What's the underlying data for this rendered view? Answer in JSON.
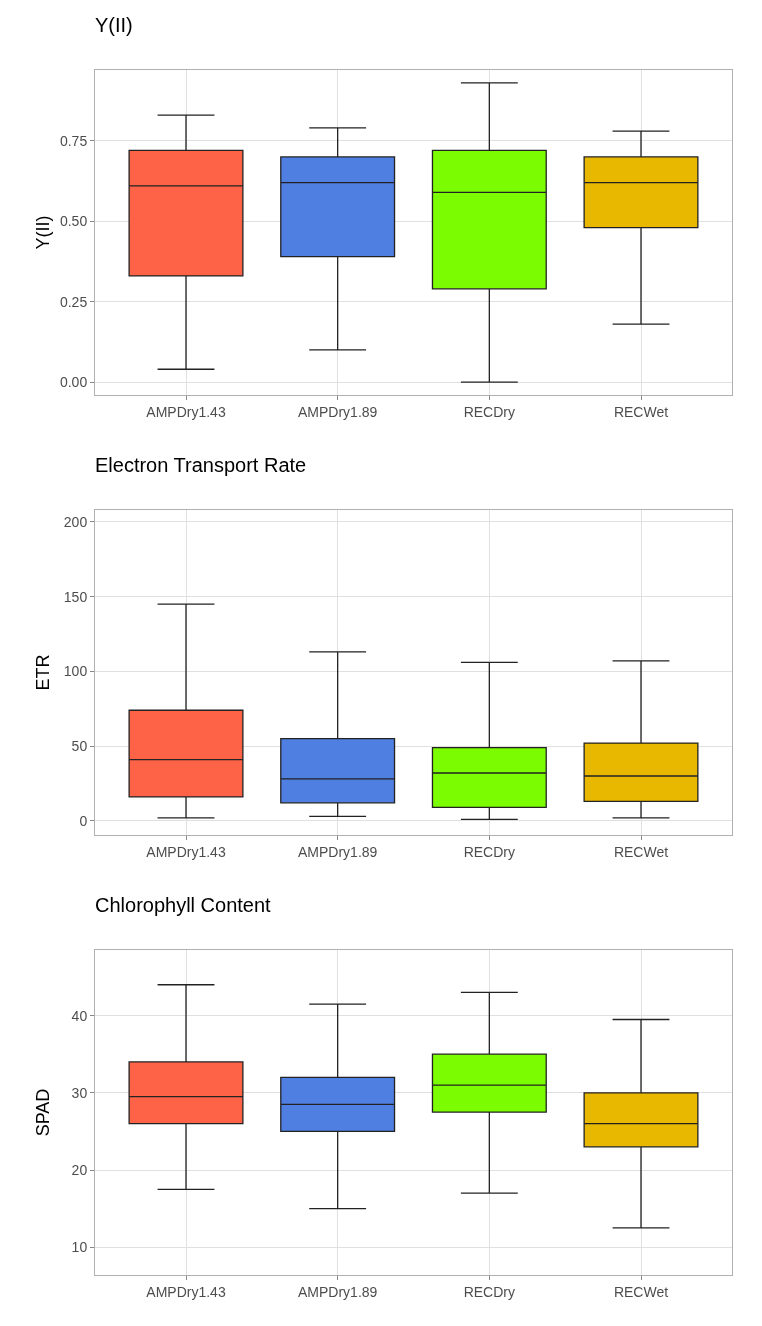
{
  "chart_data": [
    {
      "type": "box",
      "title": "Y(II)",
      "ylabel": "Y(II)",
      "categories": [
        "AMPDry1.43",
        "AMPDry1.89",
        "RECDry",
        "RECWet"
      ],
      "colors": [
        "#ff6347",
        "#4f7fe0",
        "#7cfc00",
        "#e8b800"
      ],
      "ylim": [
        -0.04,
        0.97
      ],
      "yticks": [
        {
          "value": 0,
          "label": "0.00"
        },
        {
          "value": 0.25,
          "label": "0.25"
        },
        {
          "value": 0.5,
          "label": "0.50"
        },
        {
          "value": 0.75,
          "label": "0.75"
        }
      ],
      "grid": true,
      "boxes": [
        {
          "low": 0.04,
          "q1": 0.33,
          "median": 0.61,
          "q3": 0.72,
          "high": 0.83
        },
        {
          "low": 0.1,
          "q1": 0.39,
          "median": 0.62,
          "q3": 0.7,
          "high": 0.79
        },
        {
          "low": 0.0,
          "q1": 0.29,
          "median": 0.59,
          "q3": 0.72,
          "high": 0.93
        },
        {
          "low": 0.18,
          "q1": 0.48,
          "median": 0.62,
          "q3": 0.7,
          "high": 0.78
        }
      ]
    },
    {
      "type": "box",
      "title": "Electron Transport Rate",
      "ylabel": "ETR",
      "categories": [
        "AMPDry1.43",
        "AMPDry1.89",
        "RECDry",
        "RECWet"
      ],
      "colors": [
        "#ff6347",
        "#4f7fe0",
        "#7cfc00",
        "#e8b800"
      ],
      "ylim": [
        -9.5,
        208
      ],
      "yticks": [
        0,
        50,
        100,
        150,
        200
      ],
      "grid": true,
      "boxes": [
        {
          "low": 2,
          "q1": 16,
          "median": 41,
          "q3": 74,
          "high": 145
        },
        {
          "low": 3,
          "q1": 12,
          "median": 28,
          "q3": 55,
          "high": 113
        },
        {
          "low": 1,
          "q1": 9,
          "median": 32,
          "q3": 49,
          "high": 106
        },
        {
          "low": 2,
          "q1": 13,
          "median": 30,
          "q3": 52,
          "high": 107
        }
      ]
    },
    {
      "type": "box",
      "title": "Chlorophyll Content",
      "ylabel": "SPAD",
      "categories": [
        "AMPDry1.43",
        "AMPDry1.89",
        "RECDry",
        "RECWet"
      ],
      "colors": [
        "#ff6347",
        "#4f7fe0",
        "#7cfc00",
        "#e8b800"
      ],
      "ylim": [
        6.4,
        48.5
      ],
      "yticks": [
        10,
        20,
        30,
        40
      ],
      "grid": true,
      "boxes": [
        {
          "low": 17.5,
          "q1": 26,
          "median": 29.5,
          "q3": 34,
          "high": 44
        },
        {
          "low": 15,
          "q1": 25,
          "median": 28.5,
          "q3": 32,
          "high": 41.5
        },
        {
          "low": 17,
          "q1": 27.5,
          "median": 31,
          "q3": 35,
          "high": 43
        },
        {
          "low": 12.5,
          "q1": 23,
          "median": 26,
          "q3": 30,
          "high": 39.5
        }
      ]
    }
  ]
}
